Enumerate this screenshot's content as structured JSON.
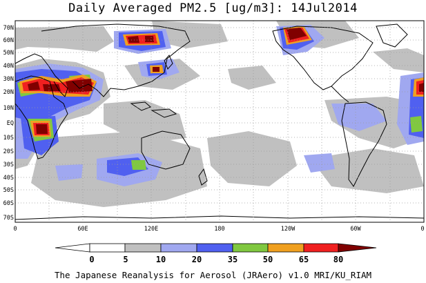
{
  "title": "Daily Averaged PM2.5 [ug/m3]: 14Jul2014",
  "footer": "The Japanese Reanalysis for Aerosol (JRAero) v1.0 MRI/KU_RIAM",
  "colors": {
    "background": "#ffffff",
    "coast": "#000000",
    "grid": "#9a9a9a",
    "bins": [
      "#ffffff",
      "#c0c0c0",
      "#a0a8f0",
      "#5060f0",
      "#80c840",
      "#f0a020",
      "#f02020",
      "#800000"
    ]
  },
  "lat_labels": [
    "70N",
    "60N",
    "50N",
    "40N",
    "30N",
    "20N",
    "10N",
    "EQ",
    "10S",
    "20S",
    "30S",
    "40S",
    "50S",
    "60S",
    "70S"
  ],
  "lon_labels": [
    "0",
    "60E",
    "120E",
    "180",
    "120W",
    "60W",
    "0"
  ],
  "colorbar": {
    "ticks": [
      "0",
      "5",
      "10",
      "20",
      "35",
      "50",
      "65",
      "80"
    ]
  }
}
